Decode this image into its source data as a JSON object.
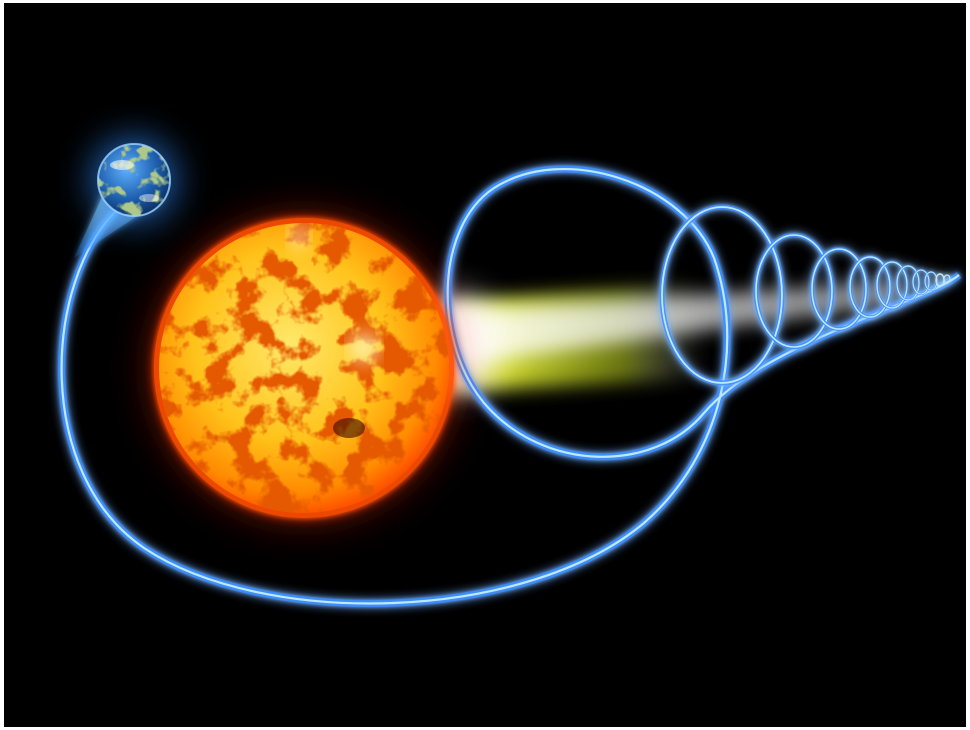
{
  "scene": {
    "subjects": [
      "earth",
      "sun",
      "light-beam",
      "orbit-path",
      "spiral-rings"
    ],
    "colors": {
      "background": "#000000",
      "frame": "#ffffff",
      "orbit_glow": "#2f8cff",
      "orbit_core": "#bfe8ff",
      "sun_outer": "#ff5a00",
      "sun_mid": "#ff9a00",
      "sun_core": "#ffe25a",
      "sun_spots": "#c81e00",
      "beam_yellow": "#f5ff3a",
      "beam_white": "#ffffff",
      "earth_ocean": "#1d5fae",
      "earth_land": "#5f8f3a"
    }
  }
}
